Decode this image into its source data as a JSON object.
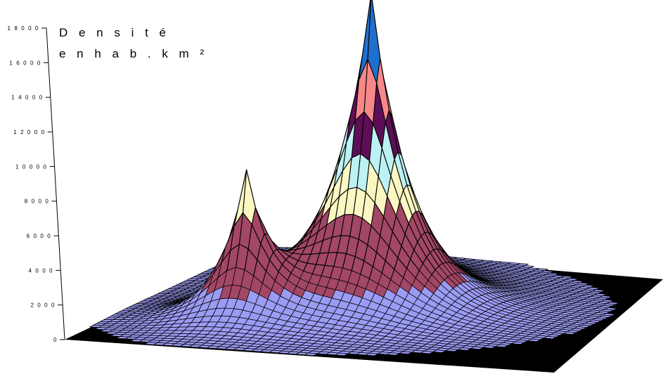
{
  "chart_data": {
    "type": "surface",
    "title": [
      "D e n s i t é",
      "e n  h a b . k m ²"
    ],
    "zlabel": "",
    "ylim": [
      0,
      18000
    ],
    "z_ticks": [
      "0",
      "2 0 0 0",
      "4 0 0 0",
      "6 0 0 0",
      "8 0 0 0",
      "1 0 0 0 0",
      "1 2 0 0 0",
      "1 4 0 0 0",
      "1 6 0 0 0",
      "1 8 0 0 0"
    ],
    "z_tick_values": [
      0,
      2000,
      4000,
      6000,
      8000,
      10000,
      12000,
      14000,
      16000,
      18000
    ],
    "peaks": [
      {
        "name": "central",
        "value": 18000
      },
      {
        "name": "right",
        "value": 10800
      },
      {
        "name": "left",
        "value": 8000
      },
      {
        "name": "far-right",
        "value": 6400
      }
    ],
    "color_bands": [
      {
        "from": 0,
        "to": 2000,
        "color": "#9c9cf5"
      },
      {
        "from": 2000,
        "to": 4000,
        "color": "#a34766"
      },
      {
        "from": 4000,
        "to": 6000,
        "color": "#a34766"
      },
      {
        "from": 6000,
        "to": 8000,
        "color": "#fbf7c2"
      },
      {
        "from": 8000,
        "to": 10000,
        "color": "#bdf2f5"
      },
      {
        "from": 10000,
        "to": 12000,
        "color": "#5e0e56"
      },
      {
        "from": 12000,
        "to": 14000,
        "color": "#f88888"
      },
      {
        "from": 14000,
        "to": 16000,
        "color": "#1f6fcf"
      },
      {
        "from": 16000,
        "to": 17000,
        "color": "#cbc8f2"
      },
      {
        "from": 17000,
        "to": 18000,
        "color": "#141b6b"
      }
    ],
    "colors": {
      "floor": "#000000",
      "mesh": "#000000"
    }
  }
}
